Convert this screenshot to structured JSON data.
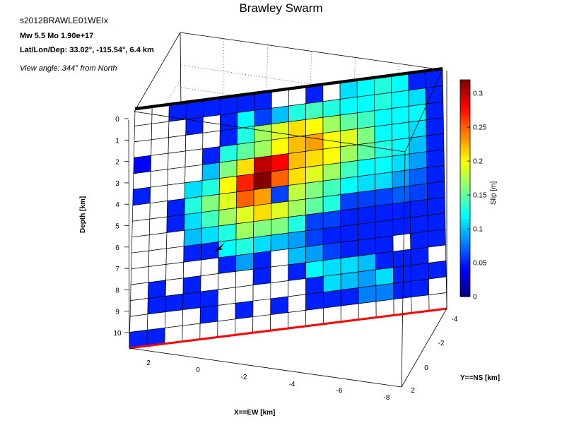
{
  "figure": {
    "title": "Brawley Swarm",
    "event_id": "s2012BRAWLE01WEIx",
    "magnitude_text": "Mw 5.5    Mo 1.90e+17",
    "location_text": "Lat/Lon/Dep: 33.02°, -115.54°, 6.4 km",
    "view_angle_text": "View angle: 344° from North"
  },
  "chart_data": {
    "type": "heatmap",
    "title": "Brawley Swarm",
    "xlabel": "X==EW [km]",
    "ylabel": "Y==NS [km]",
    "zlabel": "Depth [km]",
    "colorbar_label": "Slip [m]",
    "depth_ticks": [
      "0",
      "1",
      "2",
      "3",
      "4",
      "5",
      "6",
      "7",
      "8",
      "9",
      "10"
    ],
    "x_ticks": [
      "2",
      "0",
      "-2",
      "-4",
      "-6",
      "-8"
    ],
    "y_ticks": [
      "-4",
      "-2",
      "0",
      "2"
    ],
    "colorbar_ticks": [
      "0",
      "0.05",
      "0.1",
      "0.15",
      "0.2",
      "0.25",
      "0.3"
    ],
    "slip_range": [
      0,
      0.32
    ],
    "grid": true,
    "colormap": "jet",
    "surface_trace_color": "#000000",
    "bottom_edge_color": "#ff0000",
    "hypocenter_marker": "star",
    "slip_grid_rows_top_to_bottom": [
      [
        0,
        0,
        0.05,
        0.05,
        0.05,
        0.05,
        0.05,
        0.05,
        0,
        0,
        0.05,
        0,
        0.11,
        0.12,
        0.13,
        0.12,
        0.05,
        0.05
      ],
      [
        0,
        0,
        0,
        0.05,
        0,
        0.05,
        0.12,
        0.06,
        0.1,
        0.13,
        0.14,
        0.13,
        0.12,
        0.12,
        0.13,
        0.12,
        0.11,
        0.05
      ],
      [
        0,
        0,
        0,
        0,
        0,
        0.05,
        0.13,
        0.17,
        0.19,
        0.21,
        0.2,
        0.17,
        0.15,
        0.14,
        0.12,
        0.12,
        0.12,
        0.05
      ],
      [
        0.04,
        0,
        0,
        0,
        0.05,
        0.13,
        0.15,
        0.17,
        0.2,
        0.22,
        0.23,
        0.2,
        0.19,
        0.16,
        0.12,
        0.12,
        0.11,
        0.05
      ],
      [
        0,
        0,
        0,
        0,
        0.1,
        0.16,
        0.21,
        0.3,
        0.28,
        0.22,
        0.21,
        0.2,
        0.17,
        0.15,
        0.13,
        0.12,
        0.1,
        0.05
      ],
      [
        0.05,
        0,
        0,
        0.11,
        0.13,
        0.2,
        0.27,
        0.32,
        0.25,
        0.21,
        0.19,
        0.17,
        0.14,
        0.12,
        0.12,
        0.11,
        0.09,
        0.05
      ],
      [
        0,
        0,
        0.05,
        0.13,
        0.16,
        0.19,
        0.25,
        0.23,
        0.06,
        0.18,
        0.16,
        0.14,
        0.12,
        0.11,
        0.11,
        0.09,
        0.07,
        0.05
      ],
      [
        0,
        0,
        0.05,
        0.11,
        0.14,
        0.17,
        0.19,
        0.21,
        0.19,
        0.17,
        0.15,
        0.13,
        0.06,
        0.06,
        0.06,
        0.07,
        0.06,
        0.05
      ],
      [
        0,
        0,
        0,
        0.1,
        0.11,
        0.13,
        0.17,
        0.16,
        0.16,
        0.13,
        0.06,
        0.06,
        0.05,
        0.05,
        0.05,
        0.05,
        0.05,
        0.05
      ],
      [
        0,
        0,
        0,
        0.05,
        0.05,
        0.12,
        0.13,
        0.11,
        0.1,
        0.09,
        0.06,
        0.05,
        0.05,
        0.05,
        0.05,
        0.05,
        0.05,
        0.05
      ],
      [
        0,
        0,
        0,
        0,
        0,
        0.05,
        0.09,
        0.05,
        0,
        0.1,
        0.09,
        0.06,
        0.05,
        0.05,
        0.05,
        0,
        0.05,
        0.05
      ],
      [
        0,
        0.05,
        0,
        0.05,
        0,
        0,
        0,
        0.05,
        0,
        0.05,
        0.12,
        0.11,
        0.11,
        0.1,
        0.05,
        0.05,
        0.05,
        0
      ],
      [
        0,
        0.05,
        0.05,
        0.05,
        0.05,
        0,
        0,
        0,
        0,
        0,
        0.05,
        0.11,
        0.1,
        0.09,
        0.11,
        0.05,
        0.05,
        0.05
      ],
      [
        0,
        0,
        0,
        0,
        0.05,
        0,
        0.05,
        0,
        0.05,
        0,
        0.05,
        0.05,
        0.05,
        0.08,
        0.08,
        0.05,
        0.05,
        0
      ],
      [
        0.05,
        0.05,
        0,
        0,
        0,
        0,
        0,
        0,
        0,
        0,
        0,
        0,
        0,
        0,
        0,
        0,
        0,
        0
      ]
    ]
  }
}
